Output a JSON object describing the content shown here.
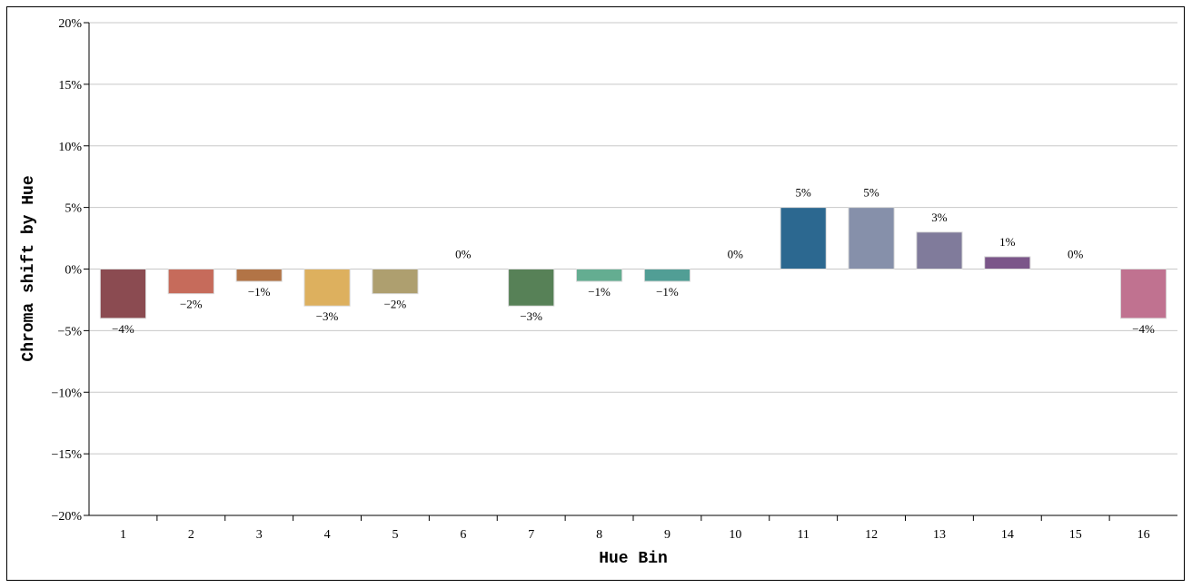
{
  "chart_data": {
    "type": "bar",
    "title": "",
    "xlabel": "Hue Bin",
    "ylabel": "Chroma shift by Hue",
    "categories": [
      "1",
      "2",
      "3",
      "4",
      "5",
      "6",
      "7",
      "8",
      "9",
      "10",
      "11",
      "12",
      "13",
      "14",
      "15",
      "16"
    ],
    "values": [
      -4,
      -2,
      -1,
      -3,
      -2,
      0,
      -3,
      -1,
      -1,
      0,
      5,
      5,
      3,
      1,
      0,
      -4
    ],
    "data_labels": [
      "−4%",
      "−2%",
      "−1%",
      "−3%",
      "−2%",
      "0%",
      "−3%",
      "−1%",
      "−1%",
      "0%",
      "5%",
      "5%",
      "3%",
      "1%",
      "0%",
      "−4%"
    ],
    "colors": [
      "#8b4b51",
      "#c66b5b",
      "#b27446",
      "#ddb05e",
      "#ae9f6f",
      "#cccccc",
      "#578157",
      "#64ad91",
      "#519e95",
      "#cccccc",
      "#2c6890",
      "#8690aa",
      "#807b9b",
      "#7b5689",
      "#cccccc",
      "#c07290"
    ],
    "ylim": [
      -20,
      20
    ],
    "yticks": [
      -20,
      -15,
      -10,
      -5,
      0,
      5,
      10,
      15,
      20
    ],
    "ytick_labels": [
      "−20%",
      "−15%",
      "−10%",
      "−5%",
      "0%",
      "5%",
      "10%",
      "15%",
      "20%"
    ],
    "grid": true,
    "legend": "none"
  }
}
